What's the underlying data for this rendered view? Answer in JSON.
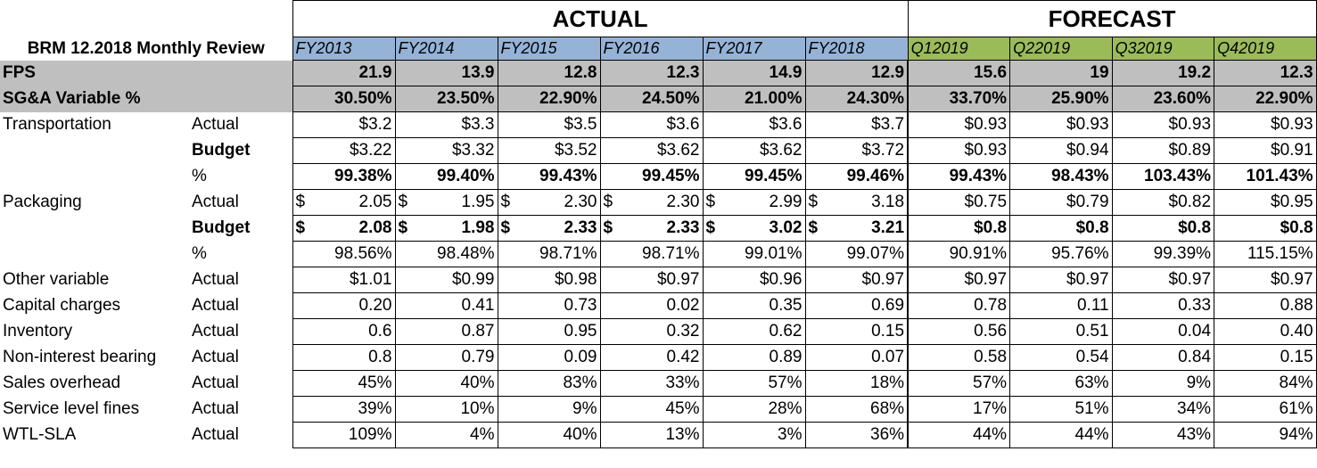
{
  "header": {
    "title": "BRM 12.2018 Monthly Review",
    "actual_label": "ACTUAL",
    "forecast_label": "FORECAST",
    "years": [
      "FY2013",
      "FY2014",
      "FY2015",
      "FY2016",
      "FY2017",
      "FY2018"
    ],
    "quarters": [
      "Q12019",
      "Q22019",
      "Q32019",
      "Q42019"
    ]
  },
  "summary_rows": [
    {
      "label": "FPS",
      "values": [
        "21.9",
        "13.9",
        "12.8",
        "12.3",
        "14.9",
        "12.9",
        "15.6",
        "19",
        "19.2",
        "12.3"
      ]
    },
    {
      "label": "SG&A Variable %",
      "values": [
        "30.50%",
        "23.50%",
        "22.90%",
        "24.50%",
        "21.00%",
        "24.30%",
        "33.70%",
        "25.90%",
        "23.60%",
        "22.90%"
      ]
    }
  ],
  "rows": [
    {
      "label": "Transportation",
      "type": "Actual",
      "bold": false,
      "values": [
        "$3.2",
        "$3.3",
        "$3.5",
        "$3.6",
        "$3.6",
        "$3.7",
        "$0.93",
        "$0.93",
        "$0.93",
        "$0.93"
      ]
    },
    {
      "label": "",
      "type": "Budget",
      "bold": false,
      "type_bold": true,
      "values": [
        "$3.22",
        "$3.32",
        "$3.52",
        "$3.62",
        "$3.62",
        "$3.72",
        "$0.93",
        "$0.94",
        "$0.89",
        "$0.91"
      ]
    },
    {
      "label": "",
      "type": "%",
      "bold": true,
      "values": [
        "99.38%",
        "99.40%",
        "99.43%",
        "99.45%",
        "99.45%",
        "99.46%",
        "99.43%",
        "98.43%",
        "103.43%",
        "101.43%"
      ]
    },
    {
      "label": "Packaging",
      "type": "Actual",
      "bold": false,
      "accounting": true,
      "values": [
        "2.05",
        "1.95",
        "2.30",
        "2.30",
        "2.99",
        "3.18",
        "$0.75",
        "$0.79",
        "$0.82",
        "$0.95"
      ]
    },
    {
      "label": "",
      "type": "Budget",
      "bold": true,
      "type_bold": true,
      "accounting": true,
      "values": [
        "2.08",
        "1.98",
        "2.33",
        "2.33",
        "3.02",
        "3.21",
        "$0.8",
        "$0.8",
        "$0.8",
        "$0.8"
      ]
    },
    {
      "label": "",
      "type": "%",
      "bold": false,
      "values": [
        "98.56%",
        "98.48%",
        "98.71%",
        "98.71%",
        "99.01%",
        "99.07%",
        "90.91%",
        "95.76%",
        "99.39%",
        "115.15%"
      ]
    },
    {
      "label": "Other variable",
      "type": "Actual",
      "bold": false,
      "values": [
        "$1.01",
        "$0.99",
        "$0.98",
        "$0.97",
        "$0.96",
        "$0.97",
        "$0.97",
        "$0.97",
        "$0.97",
        "$0.97"
      ]
    },
    {
      "label": "Capital charges",
      "type": "Actual",
      "bold": false,
      "values": [
        "0.20",
        "0.41",
        "0.73",
        "0.02",
        "0.35",
        "0.69",
        "0.78",
        "0.11",
        "0.33",
        "0.88"
      ]
    },
    {
      "label": "Inventory",
      "type": "Actual",
      "bold": false,
      "values": [
        "0.6",
        "0.87",
        "0.95",
        "0.32",
        "0.62",
        "0.15",
        "0.56",
        "0.51",
        "0.04",
        "0.40"
      ]
    },
    {
      "label": "Non-interest bearing",
      "type": "Actual",
      "bold": false,
      "values": [
        "0.8",
        "0.79",
        "0.09",
        "0.42",
        "0.89",
        "0.07",
        "0.58",
        "0.54",
        "0.84",
        "0.15"
      ]
    },
    {
      "label": "Sales overhead",
      "type": "Actual",
      "bold": false,
      "values": [
        "45%",
        "40%",
        "83%",
        "33%",
        "57%",
        "18%",
        "57%",
        "63%",
        "9%",
        "84%"
      ]
    },
    {
      "label": "Service level fines",
      "type": "Actual",
      "bold": false,
      "values": [
        "39%",
        "10%",
        "9%",
        "45%",
        "28%",
        "68%",
        "17%",
        "51%",
        "34%",
        "61%"
      ]
    },
    {
      "label": "WTL-SLA",
      "type": "Actual",
      "bold": false,
      "values": [
        "109%",
        "4%",
        "40%",
        "13%",
        "3%",
        "36%",
        "44%",
        "44%",
        "43%",
        "94%"
      ]
    }
  ],
  "currency_symbol": "$"
}
